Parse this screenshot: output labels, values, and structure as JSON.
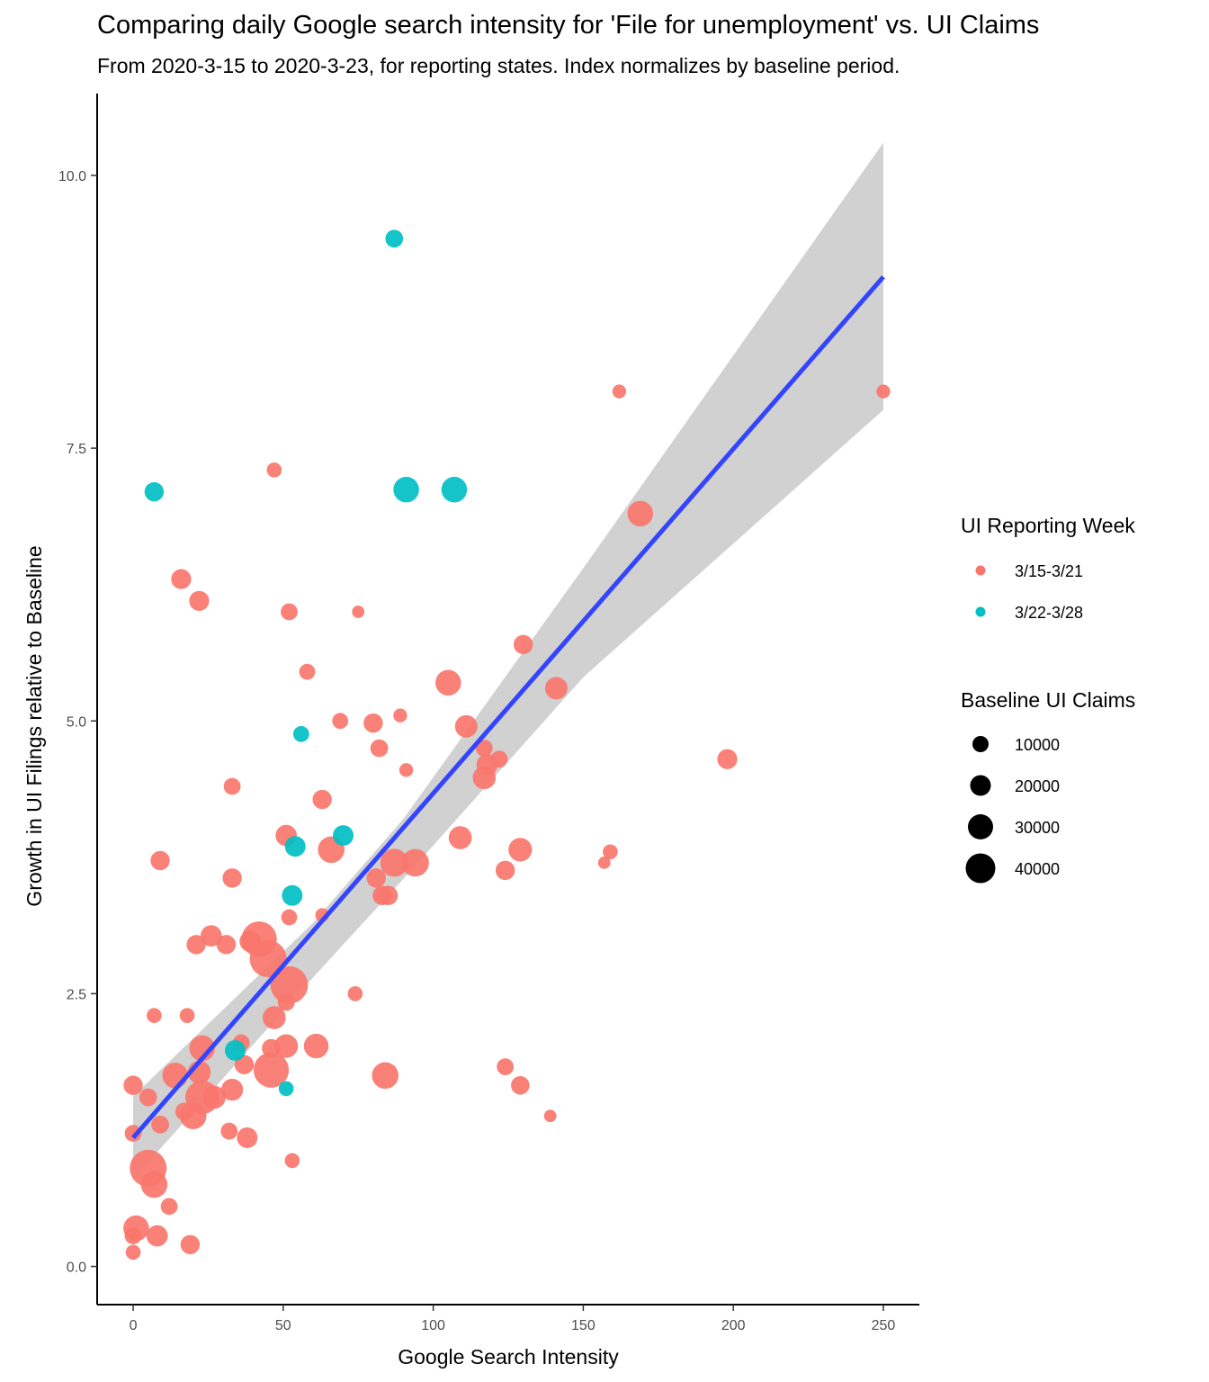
{
  "chart_data": {
    "type": "scatter",
    "title": "Comparing daily Google search intensity for 'File for unemployment' vs. UI Claims",
    "subtitle": "From 2020-3-15 to 2020-3-23, for reporting states. Index normalizes by baseline period.",
    "xlabel": "Google Search Intensity",
    "ylabel": "Growth in UI Filings relative to Baseline",
    "xlim": [
      -12,
      262
    ],
    "ylim": [
      -0.35,
      10.75
    ],
    "x_ticks": [
      0,
      50,
      100,
      150,
      200,
      250
    ],
    "y_ticks": [
      0.0,
      2.5,
      5.0,
      7.5,
      10.0
    ],
    "y_tick_labels": [
      "0.0",
      "2.5",
      "5.0",
      "7.5",
      "10.0"
    ],
    "grid": false,
    "legend_position": "right",
    "colors": {
      "week1": "#F8766D",
      "week2": "#00BFC4",
      "fit_line": "#3344FF",
      "confidence_band": "#CCCCCC"
    },
    "legend": {
      "color_title": "UI Reporting Week",
      "color_entries": [
        {
          "label": "3/15-3/21",
          "color": "#F8766D"
        },
        {
          "label": "3/22-3/28",
          "color": "#00BFC4"
        }
      ],
      "size_title": "Baseline UI Claims",
      "size_entries": [
        {
          "label": "10000",
          "value": 10000
        },
        {
          "label": "20000",
          "value": 20000
        },
        {
          "label": "30000",
          "value": 30000
        },
        {
          "label": "40000",
          "value": 40000
        }
      ]
    },
    "fit": {
      "line": [
        {
          "x": 0,
          "y": 1.18
        },
        {
          "x": 250,
          "y": 9.07
        }
      ],
      "band": [
        {
          "x": 0,
          "lo": 0.8,
          "hi": 1.56
        },
        {
          "x": 60,
          "lo": 2.65,
          "hi": 3.15
        },
        {
          "x": 90,
          "lo": 3.55,
          "hi": 4.1
        },
        {
          "x": 150,
          "lo": 5.4,
          "hi": 6.4
        },
        {
          "x": 250,
          "lo": 7.85,
          "hi": 10.3
        }
      ]
    },
    "series": [
      {
        "name": "3/15-3/21",
        "points": [
          {
            "x": 162,
            "y": 8.02,
            "size": 3000
          },
          {
            "x": 250,
            "y": 8.02,
            "size": 3000
          },
          {
            "x": 47,
            "y": 7.3,
            "size": 4000
          },
          {
            "x": 169,
            "y": 6.9,
            "size": 20000
          },
          {
            "x": 16,
            "y": 6.3,
            "size": 10000
          },
          {
            "x": 22,
            "y": 6.1,
            "size": 10000
          },
          {
            "x": 52,
            "y": 6.0,
            "size": 6000
          },
          {
            "x": 75,
            "y": 6.0,
            "size": 2000
          },
          {
            "x": 130,
            "y": 5.7,
            "size": 9000
          },
          {
            "x": 58,
            "y": 5.45,
            "size": 5000
          },
          {
            "x": 105,
            "y": 5.35,
            "size": 20000
          },
          {
            "x": 141,
            "y": 5.3,
            "size": 14000
          },
          {
            "x": 89,
            "y": 5.05,
            "size": 3000
          },
          {
            "x": 69,
            "y": 5.0,
            "size": 5000
          },
          {
            "x": 80,
            "y": 4.98,
            "size": 9000
          },
          {
            "x": 111,
            "y": 4.95,
            "size": 14000
          },
          {
            "x": 82,
            "y": 4.75,
            "size": 7000
          },
          {
            "x": 117,
            "y": 4.75,
            "size": 6000
          },
          {
            "x": 122,
            "y": 4.65,
            "size": 6000
          },
          {
            "x": 198,
            "y": 4.65,
            "size": 10000
          },
          {
            "x": 118,
            "y": 4.6,
            "size": 12000
          },
          {
            "x": 91,
            "y": 4.55,
            "size": 3000
          },
          {
            "x": 117,
            "y": 4.48,
            "size": 15000
          },
          {
            "x": 33,
            "y": 4.4,
            "size": 6000
          },
          {
            "x": 63,
            "y": 4.28,
            "size": 9000
          },
          {
            "x": 51,
            "y": 3.95,
            "size": 12000
          },
          {
            "x": 109,
            "y": 3.93,
            "size": 15000
          },
          {
            "x": 66,
            "y": 3.82,
            "size": 22000
          },
          {
            "x": 129,
            "y": 3.82,
            "size": 16000
          },
          {
            "x": 159,
            "y": 3.8,
            "size": 4000
          },
          {
            "x": 9,
            "y": 3.72,
            "size": 9000
          },
          {
            "x": 87,
            "y": 3.7,
            "size": 25000
          },
          {
            "x": 94,
            "y": 3.7,
            "size": 24000
          },
          {
            "x": 157,
            "y": 3.7,
            "size": 2000
          },
          {
            "x": 124,
            "y": 3.63,
            "size": 9000
          },
          {
            "x": 33,
            "y": 3.56,
            "size": 9000
          },
          {
            "x": 81,
            "y": 3.56,
            "size": 9000
          },
          {
            "x": 83,
            "y": 3.4,
            "size": 9000
          },
          {
            "x": 85,
            "y": 3.4,
            "size": 9000
          },
          {
            "x": 52,
            "y": 3.2,
            "size": 5000
          },
          {
            "x": 63,
            "y": 3.22,
            "size": 3000
          },
          {
            "x": 26,
            "y": 3.03,
            "size": 12000
          },
          {
            "x": 42,
            "y": 3.0,
            "size": 45000
          },
          {
            "x": 21,
            "y": 2.95,
            "size": 9000
          },
          {
            "x": 31,
            "y": 2.95,
            "size": 9000
          },
          {
            "x": 39,
            "y": 2.98,
            "size": 12000
          },
          {
            "x": 45,
            "y": 2.82,
            "size": 50000
          },
          {
            "x": 52,
            "y": 2.58,
            "size": 52000
          },
          {
            "x": 74,
            "y": 2.5,
            "size": 4000
          },
          {
            "x": 51,
            "y": 2.42,
            "size": 6000
          },
          {
            "x": 7,
            "y": 2.3,
            "size": 4000
          },
          {
            "x": 18,
            "y": 2.3,
            "size": 4000
          },
          {
            "x": 47,
            "y": 2.28,
            "size": 15000
          },
          {
            "x": 36,
            "y": 2.05,
            "size": 6000
          },
          {
            "x": 23,
            "y": 2.0,
            "size": 20000
          },
          {
            "x": 46,
            "y": 2.0,
            "size": 8000
          },
          {
            "x": 51,
            "y": 2.02,
            "size": 16000
          },
          {
            "x": 61,
            "y": 2.02,
            "size": 18000
          },
          {
            "x": 37,
            "y": 1.85,
            "size": 9000
          },
          {
            "x": 124,
            "y": 1.83,
            "size": 6000
          },
          {
            "x": 46,
            "y": 1.8,
            "size": 45000
          },
          {
            "x": 14,
            "y": 1.75,
            "size": 20000
          },
          {
            "x": 22,
            "y": 1.78,
            "size": 15000
          },
          {
            "x": 84,
            "y": 1.75,
            "size": 22000
          },
          {
            "x": 0,
            "y": 1.66,
            "size": 9000
          },
          {
            "x": 129,
            "y": 1.66,
            "size": 8000
          },
          {
            "x": 33,
            "y": 1.62,
            "size": 13000
          },
          {
            "x": 5,
            "y": 1.55,
            "size": 7000
          },
          {
            "x": 23,
            "y": 1.55,
            "size": 40000
          },
          {
            "x": 27,
            "y": 1.55,
            "size": 15000
          },
          {
            "x": 17,
            "y": 1.42,
            "size": 7000
          },
          {
            "x": 20,
            "y": 1.38,
            "size": 22000
          },
          {
            "x": 139,
            "y": 1.38,
            "size": 2000
          },
          {
            "x": 9,
            "y": 1.3,
            "size": 7000
          },
          {
            "x": 0,
            "y": 1.22,
            "size": 6000
          },
          {
            "x": 32,
            "y": 1.24,
            "size": 6000
          },
          {
            "x": 38,
            "y": 1.18,
            "size": 11000
          },
          {
            "x": 53,
            "y": 0.97,
            "size": 4000
          },
          {
            "x": 5,
            "y": 0.9,
            "size": 50000
          },
          {
            "x": 7,
            "y": 0.75,
            "size": 22000
          },
          {
            "x": 12,
            "y": 0.55,
            "size": 6000
          },
          {
            "x": 1,
            "y": 0.35,
            "size": 20000
          },
          {
            "x": 0,
            "y": 0.28,
            "size": 6000
          },
          {
            "x": 8,
            "y": 0.28,
            "size": 12000
          },
          {
            "x": 19,
            "y": 0.2,
            "size": 9000
          },
          {
            "x": 0,
            "y": 0.13,
            "size": 4000
          }
        ]
      },
      {
        "name": "3/22-3/28",
        "points": [
          {
            "x": 87,
            "y": 9.42,
            "size": 7000
          },
          {
            "x": 7,
            "y": 7.1,
            "size": 9000
          },
          {
            "x": 91,
            "y": 7.12,
            "size": 20000
          },
          {
            "x": 107,
            "y": 7.12,
            "size": 20000
          },
          {
            "x": 56,
            "y": 4.88,
            "size": 5000
          },
          {
            "x": 70,
            "y": 3.95,
            "size": 11000
          },
          {
            "x": 54,
            "y": 3.85,
            "size": 11000
          },
          {
            "x": 53,
            "y": 3.4,
            "size": 11000
          },
          {
            "x": 34,
            "y": 1.98,
            "size": 11000
          },
          {
            "x": 51,
            "y": 1.63,
            "size": 4000
          }
        ]
      }
    ]
  }
}
